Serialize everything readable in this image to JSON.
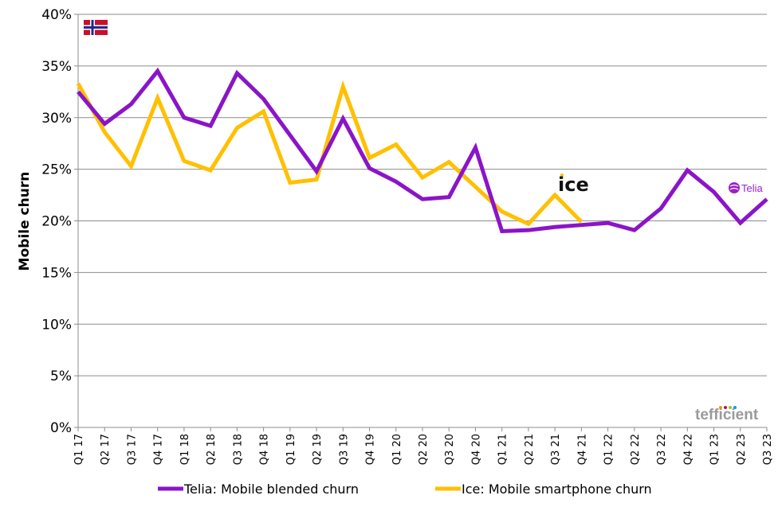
{
  "chart_data": {
    "type": "line",
    "ylabel": "Mobile churn",
    "xlabel": "",
    "ylim": [
      0,
      40
    ],
    "yticks": [
      "0%",
      "5%",
      "10%",
      "15%",
      "20%",
      "25%",
      "30%",
      "35%",
      "40%"
    ],
    "ytick_values": [
      0,
      5,
      10,
      15,
      20,
      25,
      30,
      35,
      40
    ],
    "grid": "horizontal",
    "legend_position": "bottom",
    "categories": [
      "Q1 17",
      "Q2 17",
      "Q3 17",
      "Q4 17",
      "Q1 18",
      "Q2 18",
      "Q3 18",
      "Q4 18",
      "Q1 19",
      "Q2 19",
      "Q3 19",
      "Q4 19",
      "Q1 20",
      "Q2 20",
      "Q3 20",
      "Q4 20",
      "Q1 21",
      "Q2 21",
      "Q3 21",
      "Q4 21",
      "Q1 22",
      "Q2 22",
      "Q3 22",
      "Q4 22",
      "Q1 23",
      "Q2 23",
      "Q3 23"
    ],
    "series": [
      {
        "name": "Telia: Mobile blended churn",
        "color": "#8b14c8",
        "values": [
          32.5,
          29.4,
          31.3,
          34.5,
          30.0,
          29.2,
          34.3,
          31.8,
          28.3,
          24.8,
          29.9,
          25.1,
          23.8,
          22.1,
          22.3,
          27.1,
          19.0,
          19.1,
          19.4,
          19.6,
          19.8,
          19.1,
          21.2,
          24.9,
          22.8,
          19.8,
          22.1
        ]
      },
      {
        "name": "Ice: Mobile smartphone churn",
        "color": "#ffc000",
        "values": [
          33.3,
          28.6,
          25.3,
          31.9,
          25.8,
          24.9,
          29.0,
          30.6,
          23.7,
          24.0,
          33.0,
          26.1,
          27.4,
          24.2,
          25.7,
          23.3,
          20.9,
          19.7,
          22.5,
          19.9,
          null,
          null,
          null,
          null,
          null,
          null,
          null
        ]
      }
    ],
    "annotations": {
      "ice_logo": "ice",
      "telia_logo": "Telia",
      "tefficient_logo": "tefficient",
      "flag": "norway-flag"
    }
  }
}
